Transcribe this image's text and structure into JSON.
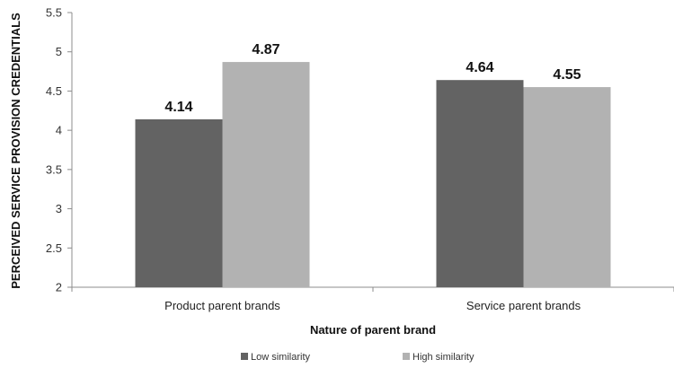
{
  "chart_data": {
    "type": "bar",
    "categories": [
      "Product parent brands",
      "Service parent brands"
    ],
    "series": [
      {
        "name": "Low similarity",
        "values": [
          4.14,
          4.64
        ],
        "color": "#636363"
      },
      {
        "name": "High similarity",
        "values": [
          4.87,
          4.55
        ],
        "color": "#b2b2b2"
      }
    ],
    "data_labels": [
      [
        "4.14",
        "4.87"
      ],
      [
        "4.64",
        "4.55"
      ]
    ],
    "xlabel": "Nature of parent brand",
    "ylabel": "PERCEIVED SERVICE PROVISION CREDENTIALS",
    "ylim": [
      2,
      5.5
    ],
    "yticks": [
      2,
      2.5,
      3,
      3.5,
      4,
      4.5,
      5,
      5.5
    ],
    "ytick_labels": [
      "2",
      "2.5",
      "3",
      "3.5",
      "4",
      "4.5",
      "5",
      "5.5"
    ],
    "grid": false,
    "legend_position": "bottom"
  }
}
